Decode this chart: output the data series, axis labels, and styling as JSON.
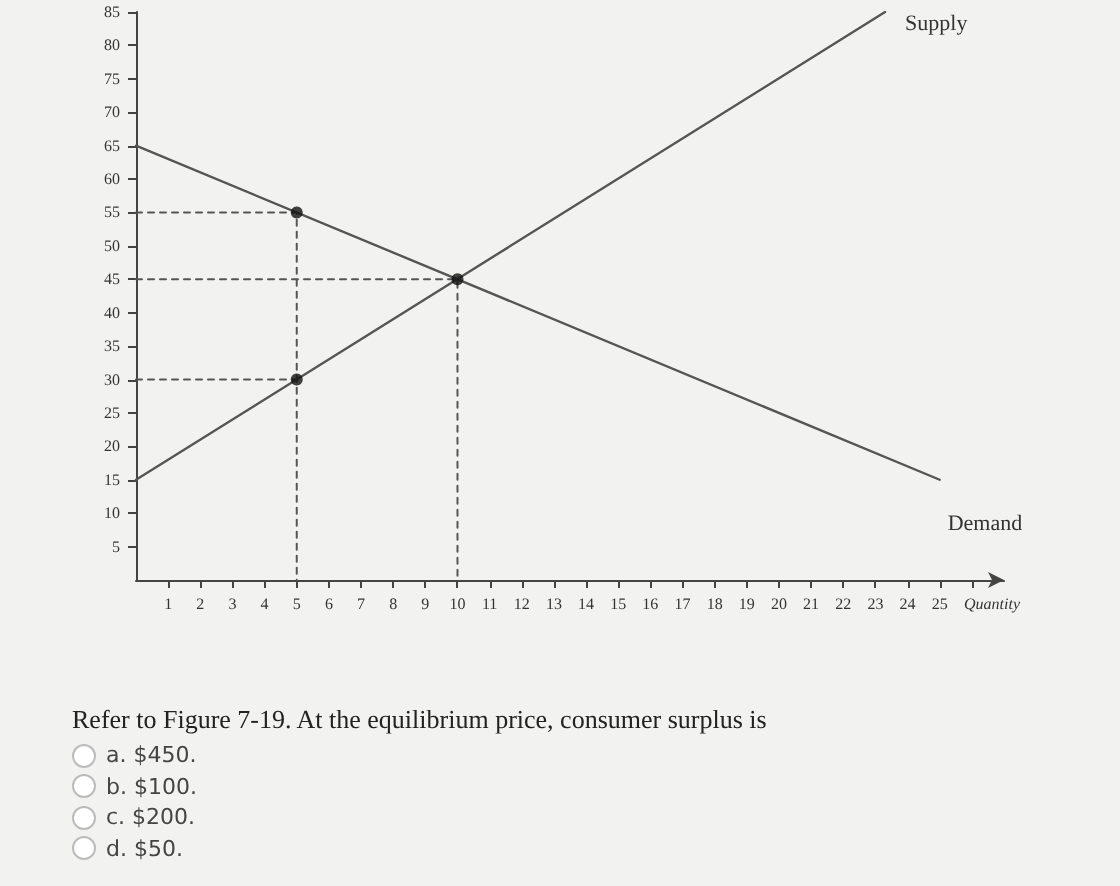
{
  "chart_data": {
    "type": "line",
    "xlabel": "Quantity",
    "xlim": [
      0,
      27
    ],
    "xticks": [
      1,
      2,
      3,
      4,
      5,
      6,
      7,
      8,
      9,
      10,
      11,
      12,
      13,
      14,
      15,
      16,
      17,
      18,
      19,
      20,
      21,
      22,
      23,
      24,
      25,
      {
        "value": 26,
        "label": null
      }
    ],
    "ylim": [
      0,
      85
    ],
    "yticks": [
      5,
      10,
      15,
      20,
      25,
      30,
      35,
      40,
      45,
      50,
      55,
      60,
      65,
      70,
      75,
      80,
      85
    ],
    "marker": "none",
    "series": [
      {
        "name": "Supply",
        "color": "#555555",
        "x": [
          0,
          23.3
        ],
        "values": [
          15,
          85
        ]
      },
      {
        "name": "Demand",
        "color": "#555555",
        "x": [
          0,
          25
        ],
        "values": [
          65,
          15
        ]
      },
      {
        "type": "line",
        "line_style": "dashed",
        "color": "#555555",
        "x": [
          0,
          5,
          5
        ],
        "values": [
          55,
          55,
          0
        ]
      },
      {
        "type": "line",
        "line_style": "dashed",
        "color": "#555555",
        "x": [
          0,
          5
        ],
        "values": [
          30,
          30
        ]
      },
      {
        "type": "line",
        "line_style": "dashed",
        "color": "#555555",
        "x": [
          0,
          10,
          10
        ],
        "values": [
          45,
          45,
          0
        ]
      },
      {
        "type": "scatter",
        "marker": "circle",
        "color": "#111111",
        "x": [
          5,
          5,
          10
        ],
        "values": [
          55,
          30,
          45
        ]
      }
    ],
    "annotations": [
      "Refer to Figure 7-19. At the equilibrium price, consumer surplus is",
      "a. $450.",
      "b. $100.",
      "c. $200.",
      "d. $50."
    ]
  }
}
